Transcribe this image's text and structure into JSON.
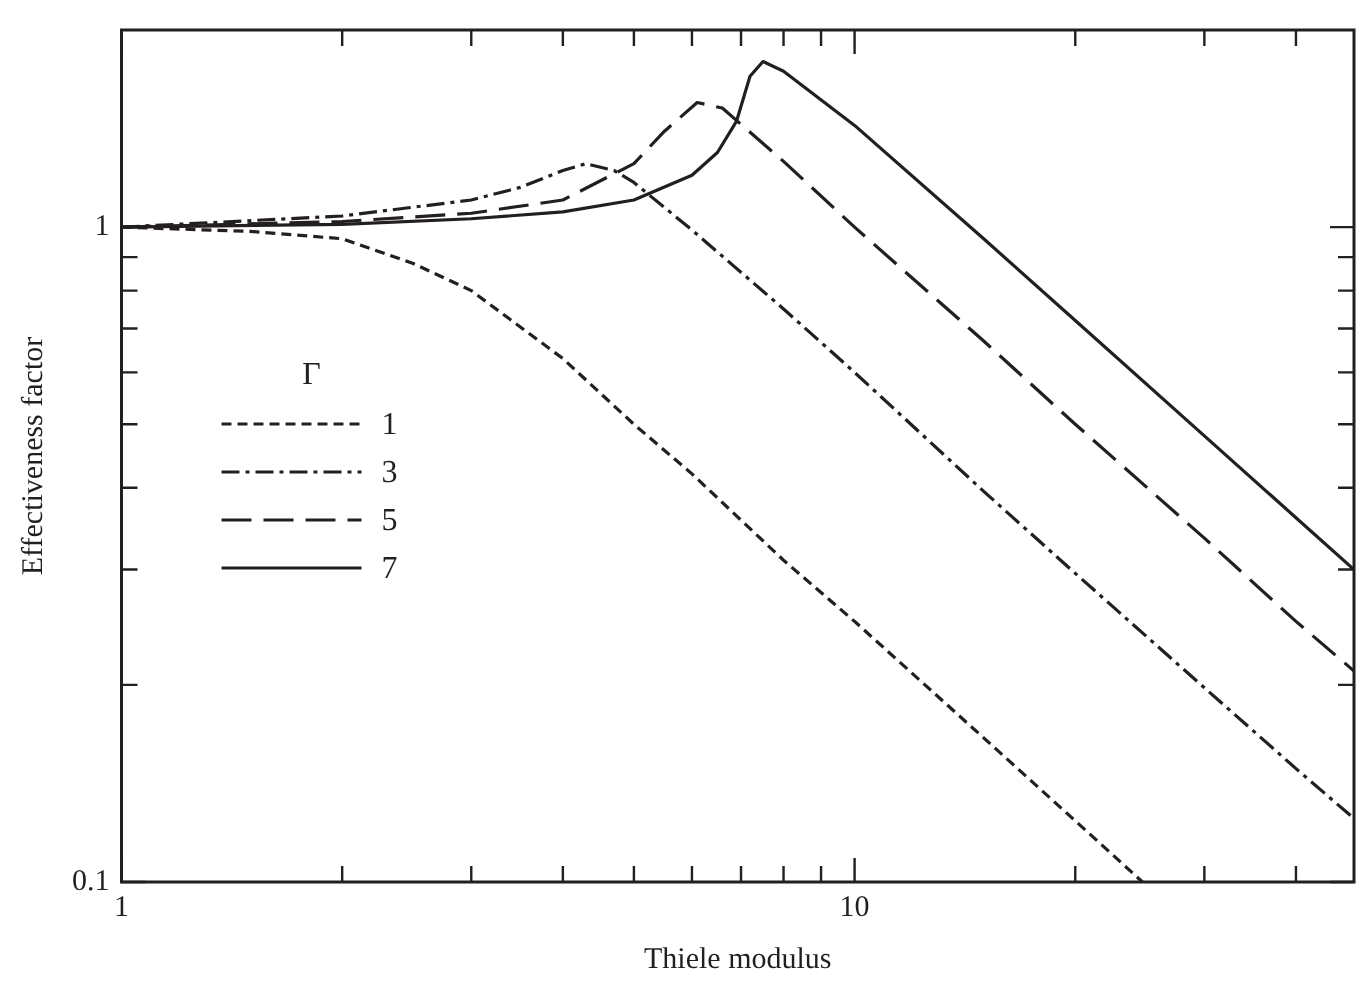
{
  "chart_data": {
    "type": "line",
    "xlabel": "Thiele modulus",
    "ylabel": "Effectiveness factor",
    "legend_title": "Γ",
    "legend": "left",
    "log": "xy",
    "grid": false,
    "marker": "none",
    "xlim": [
      1,
      48
    ],
    "ylim": [
      0.1,
      2
    ],
    "xticks": [
      1,
      {
        "value": 2,
        "label": null
      },
      {
        "value": 3,
        "label": null
      },
      {
        "value": 4,
        "label": null
      },
      {
        "value": 5,
        "label": null
      },
      {
        "value": 6,
        "label": null
      },
      {
        "value": 7,
        "label": null
      },
      {
        "value": 8,
        "label": null
      },
      {
        "value": 9,
        "label": null
      },
      10,
      {
        "value": 20,
        "label": null
      },
      {
        "value": 30,
        "label": null
      },
      {
        "value": 40,
        "label": null
      }
    ],
    "yticks": [
      0.1,
      {
        "value": 0.2,
        "label": null
      },
      {
        "value": 0.3,
        "label": null
      },
      {
        "value": 0.4,
        "label": null
      },
      {
        "value": 0.5,
        "label": null
      },
      {
        "value": 0.6,
        "label": null
      },
      {
        "value": 0.7,
        "label": null
      },
      {
        "value": 0.8,
        "label": null
      },
      {
        "value": 0.9,
        "label": null
      },
      1
    ],
    "series": [
      {
        "name": "1",
        "color": "#231f20",
        "line_style": "dashed",
        "x": [
          1,
          1.5,
          2,
          2.5,
          3,
          4,
          5,
          6,
          8,
          10,
          15,
          20,
          24.7
        ],
        "values": [
          1,
          0.985,
          0.96,
          0.88,
          0.8,
          0.63,
          0.5,
          0.42,
          0.31,
          0.25,
          0.166,
          0.124,
          0.1
        ]
      },
      {
        "name": "3",
        "color": "#231f20",
        "line_style": "dashdot",
        "x": [
          1,
          2,
          3,
          3.5,
          4,
          4.3,
          4.7,
          5,
          6,
          8,
          10,
          15,
          20,
          30,
          40,
          48
        ],
        "values": [
          1,
          1.04,
          1.1,
          1.15,
          1.22,
          1.25,
          1.22,
          1.17,
          0.99,
          0.75,
          0.6,
          0.395,
          0.296,
          0.198,
          0.149,
          0.125
        ]
      },
      {
        "name": "5",
        "color": "#231f20",
        "line_style": "longdashed",
        "x": [
          1,
          2,
          3,
          4,
          5,
          5.5,
          6.1,
          6.6,
          8,
          10,
          15,
          20,
          30,
          40,
          48
        ],
        "values": [
          1,
          1.02,
          1.05,
          1.1,
          1.25,
          1.4,
          1.55,
          1.52,
          1.26,
          1.0,
          0.67,
          0.5,
          0.335,
          0.25,
          0.21
        ]
      },
      {
        "name": "7",
        "color": "#231f20",
        "line_style": "solid",
        "x": [
          1,
          2,
          3,
          4,
          5,
          6,
          6.5,
          6.9,
          7.2,
          7.5,
          8,
          10,
          15,
          20,
          30,
          40,
          48
        ],
        "values": [
          1,
          1.01,
          1.03,
          1.055,
          1.1,
          1.2,
          1.3,
          1.45,
          1.7,
          1.79,
          1.73,
          1.43,
          0.96,
          0.72,
          0.48,
          0.36,
          0.3
        ]
      }
    ]
  }
}
